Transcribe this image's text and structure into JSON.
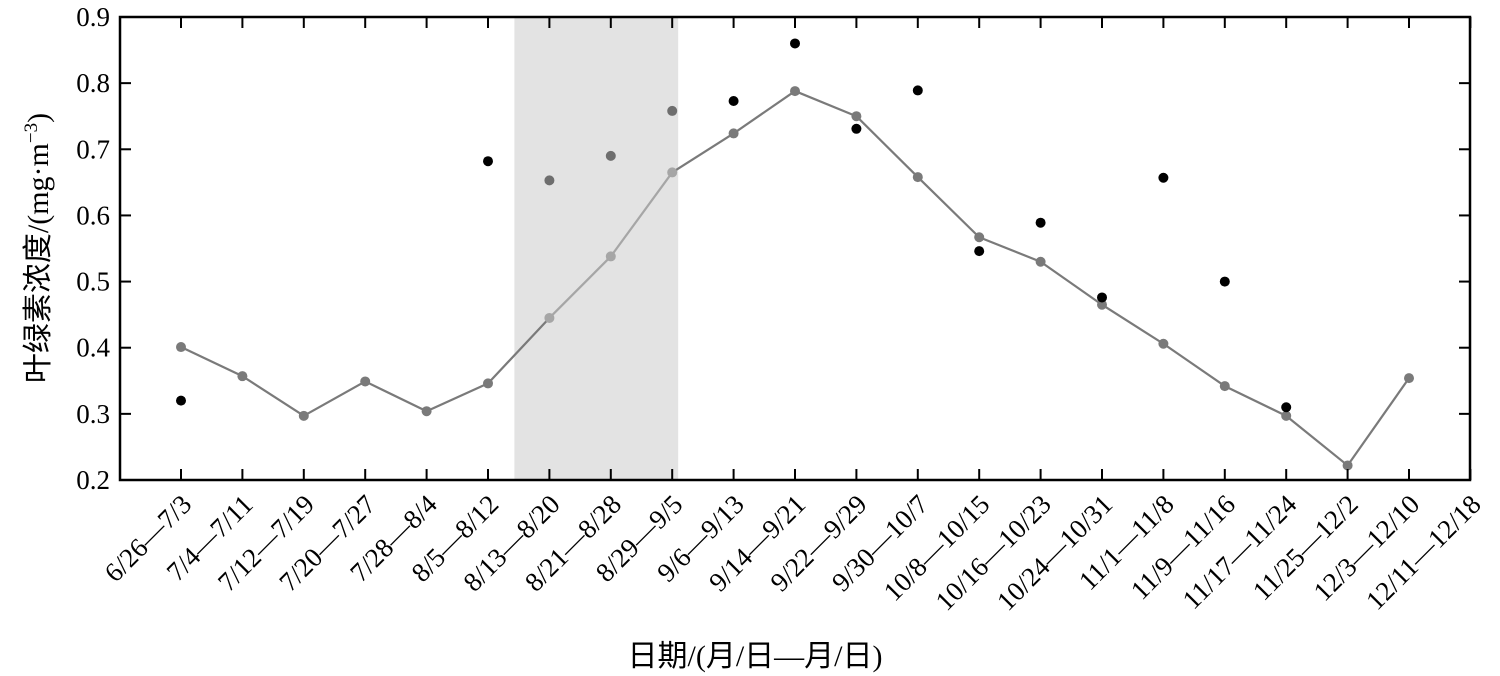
{
  "chart_data": {
    "type": "line",
    "xlabel": "日期/(月/日—月/日)",
    "ylabel_main": "叶绿素浓度/(mg·m",
    "ylabel_sup": "−3",
    "ylabel_close": ")",
    "ylim": [
      0.2,
      0.9
    ],
    "yticks": [
      "0.2",
      "0.3",
      "0.4",
      "0.5",
      "0.6",
      "0.7",
      "0.8",
      "0.9"
    ],
    "categories": [
      "6/26—7/3",
      "7/4—7/11",
      "7/12—7/19",
      "7/20—7/27",
      "7/28—8/4",
      "8/5—8/12",
      "8/13—8/20",
      "8/21—8/28",
      "8/29—9/5",
      "9/6—9/13",
      "9/14—9/21",
      "9/22—9/29",
      "9/30—10/7",
      "10/8—10/15",
      "10/16—10/23",
      "10/24—10/31",
      "11/1—11/8",
      "11/9—11/16",
      "11/17—11/24",
      "11/25—12/2",
      "12/3—12/10",
      "12/11—12/18"
    ],
    "highlight_range": [
      "8/13—8/20",
      "8/29—9/5"
    ],
    "series": [
      {
        "type": "line",
        "color": "#7a7a7a",
        "highlight_color": "#a6a6a6",
        "values": [
          0.401,
          0.357,
          0.297,
          0.349,
          0.304,
          0.346,
          0.445,
          0.538,
          0.665,
          0.724,
          0.788,
          0.75,
          0.658,
          0.567,
          0.53,
          0.465,
          0.406,
          0.342,
          0.297,
          0.222,
          0.354,
          null
        ]
      },
      {
        "type": "scatter",
        "color": "#000000",
        "highlight_color": "#6e6e6e",
        "values": [
          0.32,
          null,
          null,
          null,
          null,
          0.682,
          0.653,
          0.69,
          0.758,
          0.773,
          0.86,
          0.731,
          0.789,
          0.546,
          0.589,
          0.476,
          0.657,
          0.5,
          0.31,
          null,
          null,
          null
        ]
      }
    ],
    "grid": false
  }
}
